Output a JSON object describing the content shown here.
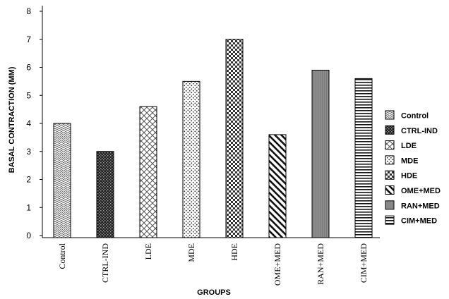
{
  "chart_data": {
    "type": "bar",
    "xlabel": "GROUPS",
    "ylabel": "BASAL CONTRACTION (MM)",
    "ylim": [
      0,
      8
    ],
    "yticks": [
      "0",
      "1",
      "2",
      "3",
      "4",
      "5",
      "6",
      "7",
      "8"
    ],
    "categories": [
      "Control",
      "CTRL-IND",
      "LDE",
      "MDE",
      "HDE",
      "OME+MED",
      "RAN+MED",
      "CIM+MED"
    ],
    "values": [
      4.0,
      3.0,
      4.6,
      5.5,
      7.0,
      3.6,
      5.9,
      5.6
    ],
    "legend": {
      "position": "right",
      "entries": [
        "Control",
        "CTRL-IND",
        "LDE",
        "MDE",
        "HDE",
        "OME+MED",
        "RAN+MED",
        "CIM+MED"
      ]
    },
    "grid": false
  }
}
